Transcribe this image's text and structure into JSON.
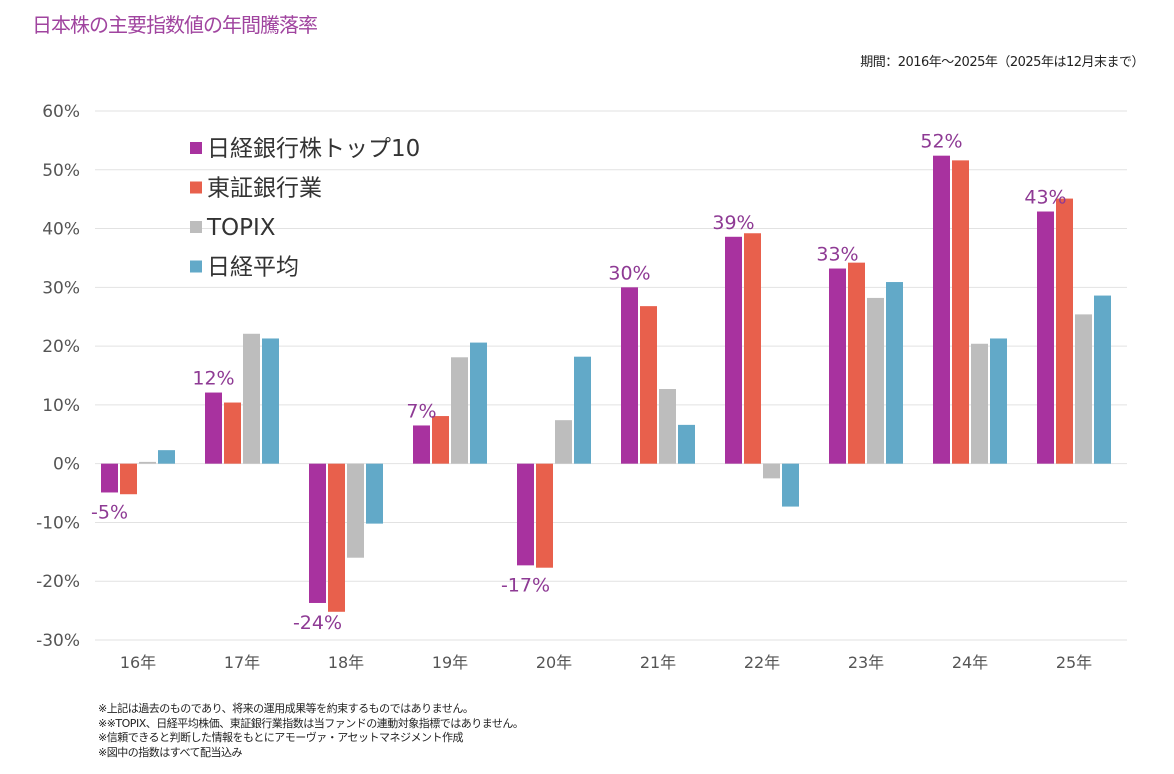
{
  "title": "日本株の主要指数値の年間騰落率",
  "period": "期間：2016年～2025年（2025年は12月末まで）",
  "notes": [
    "※上記は過去のものであり、将来の運用成果等を約束するものではありません。",
    "※※TOPIX、日経平均株価、東証銀行業指数は当ファンドの連動対象指標ではありません。",
    "※信頼できると判断した情報をもとにアモーヴァ・アセットマネジメント作成",
    "※図中の指数はすべて配当込み"
  ],
  "chart_data": {
    "type": "bar",
    "title": "日本株の主要指数値の年間騰落率",
    "xlabel": "",
    "ylabel": "",
    "ylim": [
      -30,
      60
    ],
    "yticks": [
      -30,
      -20,
      -10,
      0,
      10,
      20,
      30,
      40,
      50,
      60
    ],
    "ytick_labels": [
      "-30%",
      "-20%",
      "-10%",
      "0%",
      "10%",
      "20%",
      "30%",
      "40%",
      "50%",
      "60%"
    ],
    "grid": true,
    "legend_position": "top-left",
    "categories": [
      "16年",
      "17年",
      "18年",
      "19年",
      "20年",
      "21年",
      "22年",
      "23年",
      "24年",
      "25年"
    ],
    "series": [
      {
        "name": "日経銀行株トップ10",
        "color": "#a8329f",
        "values": [
          -4.9,
          12.1,
          -23.7,
          6.5,
          -17.3,
          30.0,
          38.6,
          33.2,
          52.4,
          42.9
        ],
        "data_labels": [
          "-5%",
          "12%",
          "-24%",
          "7%",
          "-17%",
          "30%",
          "39%",
          "33%",
          "52%",
          "43%"
        ]
      },
      {
        "name": "東証銀行業",
        "color": "#e8604c",
        "values": [
          -5.2,
          10.4,
          -25.2,
          8.1,
          -17.7,
          26.8,
          39.2,
          34.2,
          51.6,
          45.1
        ]
      },
      {
        "name": "TOPIX",
        "color": "#bdbdbd",
        "values": [
          0.3,
          22.1,
          -16.0,
          18.1,
          7.4,
          12.7,
          -2.5,
          28.2,
          20.4,
          25.4
        ]
      },
      {
        "name": "日経平均",
        "color": "#62a9c8",
        "values": [
          2.3,
          21.3,
          -10.2,
          20.6,
          18.2,
          6.6,
          -7.3,
          30.9,
          21.3,
          28.6
        ]
      }
    ]
  }
}
